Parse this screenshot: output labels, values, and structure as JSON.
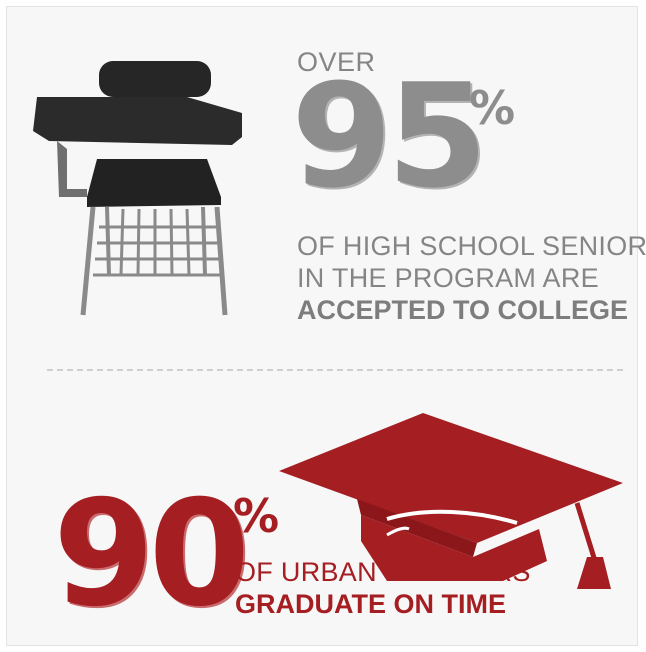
{
  "stat1": {
    "prefix": "OVER",
    "number": "95",
    "percent_sign": "%",
    "line1": "OF HIGH SCHOOL SENIORS",
    "line2": "IN THE PROGRAM ARE",
    "line3": "ACCEPTED TO COLLEGE",
    "icon": "school-desk-icon",
    "color": "#8d8d8d"
  },
  "stat2": {
    "number": "90",
    "percent_sign": "%",
    "line1": "OF URBAN DEBATERS",
    "line2": "GRADUATE ON TIME",
    "icon": "graduation-cap-icon",
    "color": "#a41e22"
  },
  "colors": {
    "gray_text": "#858585",
    "accent_red": "#a41e22",
    "background": "#f7f7f7"
  }
}
